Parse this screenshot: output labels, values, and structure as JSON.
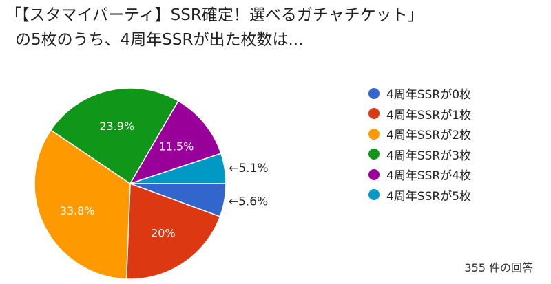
{
  "title": {
    "line1": "「【スタマイパーティ】SSR確定！選べるガチャチケット」",
    "line2": "の5枚のうち、4周年SSRが出た枚数は..."
  },
  "chart_data": {
    "type": "pie",
    "categories": [
      "4周年SSRが0枚",
      "4周年SSRが1枚",
      "4周年SSRが2枚",
      "4周年SSRが3枚",
      "4周年SSRが4枚",
      "4周年SSRが5枚"
    ],
    "values": [
      5.6,
      20,
      33.8,
      23.9,
      11.5,
      5.1
    ],
    "labels": [
      "5.6%",
      "20%",
      "33.8%",
      "23.9%",
      "11.5%",
      "5.1%"
    ],
    "outside_labels": [
      "←5.6%",
      "",
      "",
      "",
      "",
      "←5.1%"
    ],
    "colors": [
      "#3366cc",
      "#dc3912",
      "#ff9900",
      "#109618",
      "#990099",
      "#0099c6"
    ],
    "legend_position": "right",
    "start": "3 o'clock, clockwise"
  },
  "footer": {
    "responses": "355 件の回答"
  }
}
